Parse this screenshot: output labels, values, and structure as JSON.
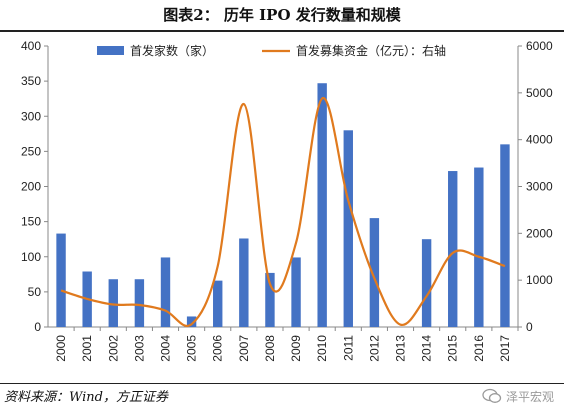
{
  "header": {
    "title": "图表2：  历年 IPO 发行数量和规模"
  },
  "footer": {
    "source": "资料来源：Wind，方正证券",
    "watermark": "泽平宏观"
  },
  "chart_data": {
    "type": "bar+line",
    "categories": [
      "2000",
      "2001",
      "2002",
      "2003",
      "2004",
      "2005",
      "2006",
      "2007",
      "2008",
      "2009",
      "2010",
      "2011",
      "2012",
      "2013",
      "2014",
      "2015",
      "2016",
      "2017"
    ],
    "series": [
      {
        "name": "首发家数（家）",
        "type": "bar",
        "axis": "left",
        "color": "#4472C4",
        "values": [
          133,
          79,
          68,
          68,
          99,
          15,
          66,
          126,
          77,
          99,
          347,
          280,
          155,
          0,
          125,
          222,
          227,
          260
        ]
      },
      {
        "name": "首发募集资金（亿元）：右轴",
        "type": "line",
        "axis": "right",
        "color": "#E07A1E",
        "values": [
          780,
          600,
          480,
          470,
          350,
          60,
          1300,
          4760,
          920,
          1800,
          4880,
          2700,
          1040,
          50,
          660,
          1580,
          1500,
          1300
        ]
      }
    ],
    "y_left": {
      "min": 0,
      "max": 400,
      "ticks": [
        0,
        50,
        100,
        150,
        200,
        250,
        300,
        350,
        400
      ]
    },
    "y_right": {
      "min": 0,
      "max": 6000,
      "ticks": [
        0,
        1000,
        2000,
        3000,
        4000,
        5000,
        6000
      ]
    },
    "legend": "top",
    "grid": false
  }
}
